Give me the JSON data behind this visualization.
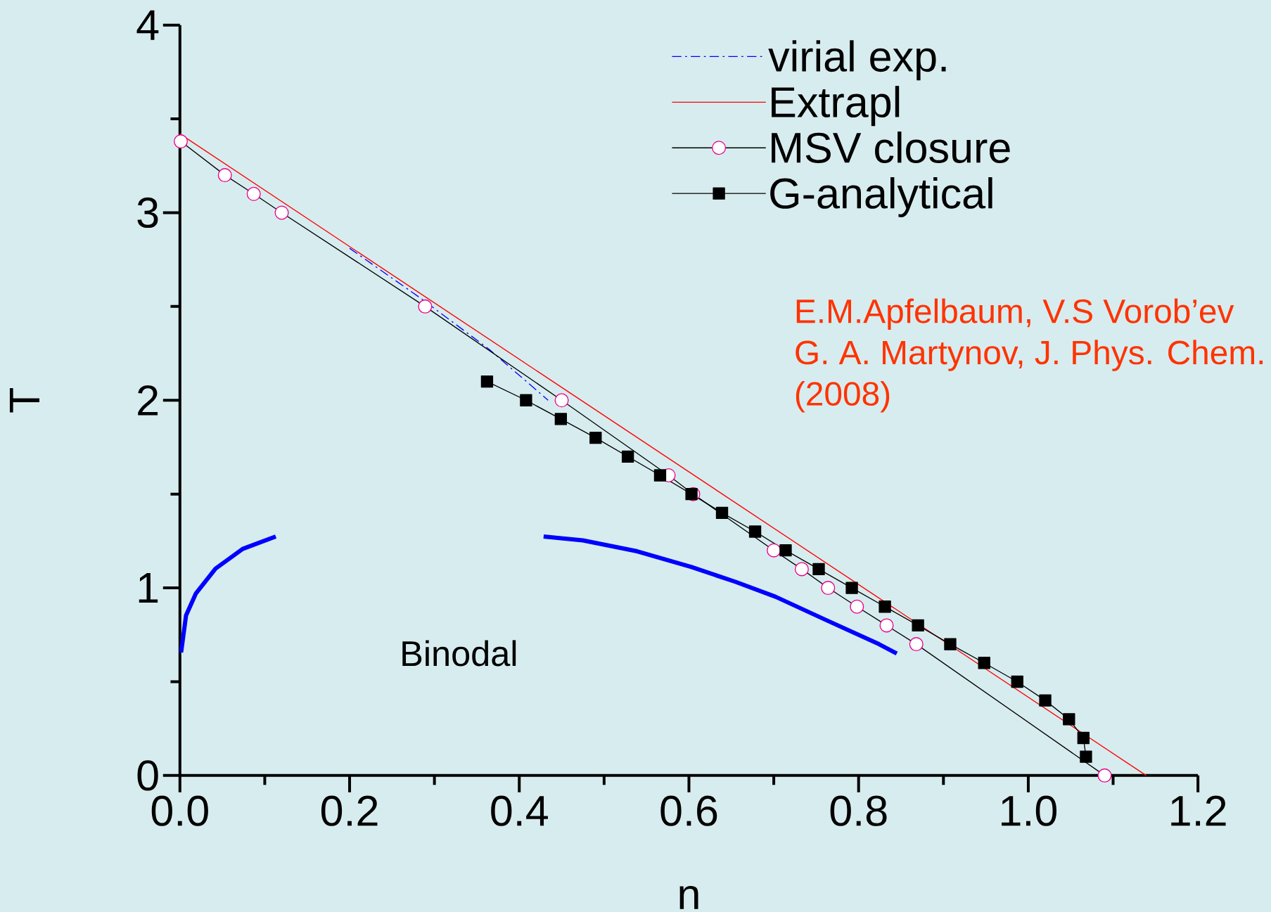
{
  "chart_data": {
    "type": "line",
    "xlabel": "n",
    "ylabel": "T",
    "xlim": [
      0,
      1.2
    ],
    "ylim": [
      0,
      4
    ],
    "xticks": [
      {
        "value": 0,
        "label": "0.0"
      },
      {
        "value": 0.1,
        "label": null
      },
      {
        "value": 0.2,
        "label": "0.2"
      },
      {
        "value": 0.3,
        "label": null
      },
      {
        "value": 0.4,
        "label": "0.4"
      },
      {
        "value": 0.5,
        "label": null
      },
      {
        "value": 0.6,
        "label": "0.6"
      },
      {
        "value": 0.7,
        "label": null
      },
      {
        "value": 0.8,
        "label": "0.8"
      },
      {
        "value": 0.9,
        "label": null
      },
      {
        "value": 1.0,
        "label": "1.0"
      },
      {
        "value": 1.1,
        "label": null
      },
      {
        "value": 1.2,
        "label": "1.2"
      }
    ],
    "yticks": [
      0,
      {
        "value": 0.5,
        "label": null
      },
      1,
      {
        "value": 1.5,
        "label": null
      },
      2,
      {
        "value": 2.5,
        "label": null
      },
      3,
      {
        "value": 3.5,
        "label": null
      },
      4
    ],
    "grid": false,
    "legend": "top right",
    "annotations": [
      "Binodal",
      "E.M.Apfelbaum, V.S Vorob’ev",
      "G. A. Martynov, J. Phys. Chem.",
      "(2008)"
    ],
    "series": [
      {
        "name": "virial exp.",
        "color": "#0000ff",
        "line_style": "dashdot",
        "marker": "none",
        "x": [
          0.2,
          0.285,
          0.365,
          0.434
        ],
        "values": [
          2.81,
          2.54,
          2.27,
          2.0
        ]
      },
      {
        "name": "Extrapl",
        "color": "#ff0000",
        "line_style": "solid",
        "marker": "none",
        "x": [
          0,
          1.139
        ],
        "values": [
          3.42,
          0
        ]
      },
      {
        "name": "MSV closure",
        "color": "#000000",
        "line_style": "solid",
        "marker": "circle",
        "x": [
          0.001,
          0.053,
          0.087,
          0.12,
          0.289,
          0.45,
          0.576,
          0.605,
          0.7,
          0.733,
          0.764,
          0.798,
          0.833,
          0.868,
          1.09
        ],
        "values": [
          3.38,
          3.2,
          3.1,
          3.0,
          2.5,
          2.0,
          1.6,
          1.5,
          1.2,
          1.1,
          1.0,
          0.9,
          0.8,
          0.7,
          0.0
        ]
      },
      {
        "name": "G-analytical",
        "color": "#000000",
        "line_style": "solid",
        "marker": "square",
        "x": [
          0.362,
          0.408,
          0.449,
          0.49,
          0.528,
          0.566,
          0.603,
          0.639,
          0.678,
          0.714,
          0.753,
          0.792,
          0.831,
          0.87,
          0.908,
          0.948,
          0.987,
          1.02,
          1.048,
          1.065,
          1.068
        ],
        "values": [
          2.1,
          2.0,
          1.9,
          1.8,
          1.7,
          1.6,
          1.5,
          1.4,
          1.3,
          1.2,
          1.1,
          1.0,
          0.9,
          0.8,
          0.7,
          0.6,
          0.5,
          0.4,
          0.3,
          0.2,
          0.1
        ]
      },
      {
        "color": "#0000ff",
        "line_style": "solid",
        "marker": "none",
        "x": [
          0.0014,
          0.0072,
          0.0189,
          0.042,
          0.074,
          0.113
        ],
        "values": [
          0.656,
          0.853,
          0.971,
          1.103,
          1.208,
          1.274
        ]
      },
      {
        "color": "#0000ff",
        "line_style": "solid",
        "marker": "none",
        "x": [
          0.4287,
          0.475,
          0.539,
          0.603,
          0.655,
          0.702,
          0.76,
          0.824,
          0.845
        ],
        "values": [
          1.274,
          1.253,
          1.195,
          1.111,
          1.032,
          0.953,
          0.832,
          0.7,
          0.65
        ]
      }
    ]
  }
}
